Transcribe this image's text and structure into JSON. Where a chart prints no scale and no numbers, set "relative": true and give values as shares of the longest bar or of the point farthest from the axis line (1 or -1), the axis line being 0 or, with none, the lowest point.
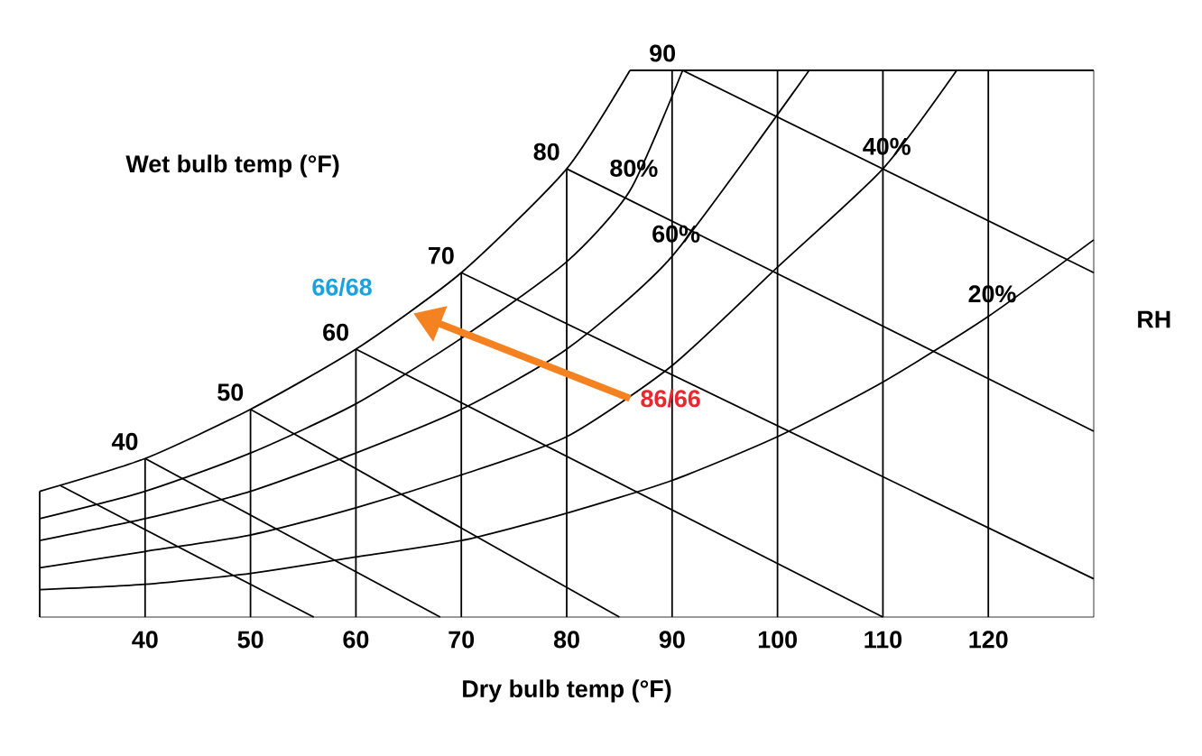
{
  "chart_data": {
    "type": "line",
    "relative": true,
    "xlabel": "Dry bulb temp (°F)",
    "xlim": [
      30,
      130
    ],
    "xticks": [
      40,
      50,
      60,
      70,
      80,
      90,
      100,
      110,
      120
    ],
    "tick_labels": "x",
    "grid": false,
    "marker": "none",
    "series": [
      {
        "color": "#000000",
        "x": [
          30,
          40,
          50,
          60,
          70,
          80,
          86
        ],
        "values": [
          0.23,
          0.29,
          0.38,
          0.49,
          0.63,
          0.82,
          1.0
        ]
      },
      {
        "name": "80%",
        "color": "#000000",
        "x": [
          30,
          40,
          50,
          60,
          70,
          80,
          86,
          91
        ],
        "values": [
          0.18,
          0.23,
          0.3,
          0.39,
          0.51,
          0.65,
          0.78,
          1.0
        ]
      },
      {
        "name": "60%",
        "color": "#000000",
        "x": [
          30,
          40,
          50,
          60,
          70,
          80,
          90,
          103
        ],
        "values": [
          0.14,
          0.18,
          0.23,
          0.3,
          0.38,
          0.49,
          0.66,
          1.0
        ]
      },
      {
        "name": "40%",
        "color": "#000000",
        "x": [
          30,
          40,
          50,
          60,
          70,
          80,
          90,
          100,
          110,
          117
        ],
        "values": [
          0.09,
          0.12,
          0.15,
          0.2,
          0.26,
          0.33,
          0.46,
          0.64,
          0.82,
          1.0
        ]
      },
      {
        "name": "20%",
        "color": "#000000",
        "x": [
          30,
          40,
          50,
          60,
          70,
          80,
          90,
          100,
          110,
          120,
          130
        ],
        "values": [
          0.05,
          0.06,
          0.08,
          0.11,
          0.14,
          0.19,
          0.25,
          0.33,
          0.43,
          0.55,
          0.69
        ]
      },
      {
        "color": "#000000",
        "x": [
          32,
          56
        ],
        "values": [
          0.24,
          0
        ]
      },
      {
        "name": "40",
        "color": "#000000",
        "x": [
          40,
          68
        ],
        "values": [
          0.29,
          0
        ]
      },
      {
        "name": "50",
        "color": "#000000",
        "x": [
          50,
          85
        ],
        "values": [
          0.38,
          0
        ]
      },
      {
        "name": "60",
        "color": "#000000",
        "x": [
          60,
          110
        ],
        "values": [
          0.49,
          0
        ]
      },
      {
        "name": "70",
        "color": "#000000",
        "x": [
          70,
          130
        ],
        "values": [
          0.63,
          0.07
        ]
      },
      {
        "name": "80",
        "color": "#000000",
        "x": [
          80,
          130
        ],
        "values": [
          0.82,
          0.34
        ]
      },
      {
        "name": "90",
        "color": "#000000",
        "x": [
          91,
          130
        ],
        "values": [
          1.0,
          0.63
        ]
      },
      {
        "color": "#000000",
        "x": [
          40,
          40
        ],
        "values": [
          0,
          0.29
        ]
      },
      {
        "color": "#000000",
        "x": [
          50,
          50
        ],
        "values": [
          0,
          0.38
        ]
      },
      {
        "color": "#000000",
        "x": [
          60,
          60
        ],
        "values": [
          0,
          0.49
        ]
      },
      {
        "color": "#000000",
        "x": [
          70,
          70
        ],
        "values": [
          0,
          0.63
        ]
      },
      {
        "color": "#000000",
        "x": [
          80,
          80
        ],
        "values": [
          0,
          0.82
        ]
      },
      {
        "color": "#000000",
        "x": [
          90,
          90
        ],
        "values": [
          0,
          1.0
        ]
      },
      {
        "color": "#000000",
        "x": [
          100,
          100
        ],
        "values": [
          0,
          1.0
        ]
      },
      {
        "color": "#000000",
        "x": [
          110,
          110
        ],
        "values": [
          0,
          1.0
        ]
      },
      {
        "color": "#000000",
        "x": [
          120,
          120
        ],
        "values": [
          0,
          1.0
        ]
      }
    ],
    "annotations": [
      "Wet bulb temp (°F)",
      "RH",
      "66/68",
      {
        "text": "86/66",
        "x": 86,
        "y": 0.4
      }
    ]
  }
}
